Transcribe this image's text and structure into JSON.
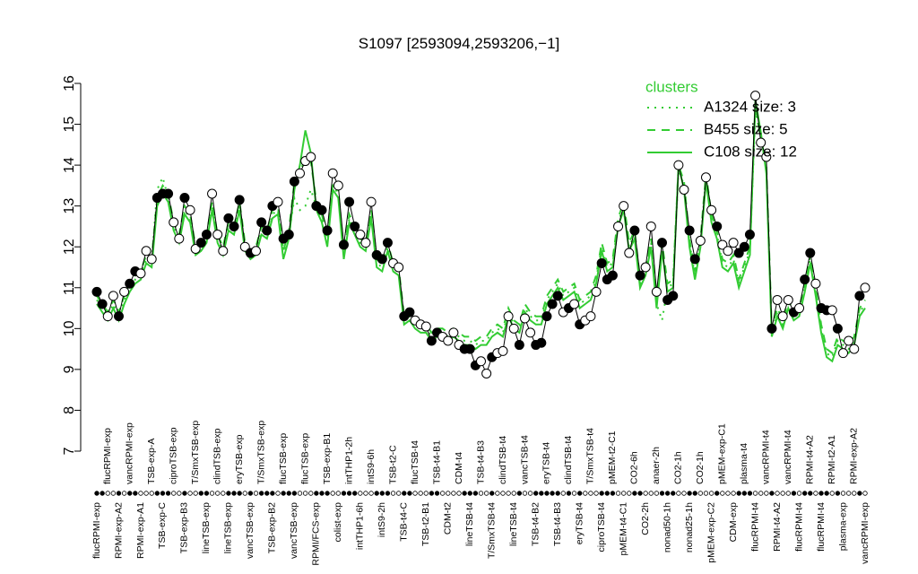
{
  "chart_data": {
    "type": "line",
    "title": "S1097 [2593094,2593206,−1]",
    "ylim": [
      7,
      16
    ],
    "yticks": [
      7,
      8,
      9,
      10,
      11,
      12,
      13,
      14,
      15,
      16
    ],
    "legend_title": "clusters",
    "legend_position": "top-right",
    "categories": [
      "flucRPMI-exp",
      null,
      "flucRPMI-exp",
      null,
      "RPMI-exp-A2",
      null,
      "vancRPMI-exp",
      null,
      "RPMI-exp-A1",
      null,
      "TSB-exp-A",
      null,
      "TSB-exp-C",
      null,
      "ciproTSB-exp",
      null,
      "TSB-exp-B3",
      null,
      "T/SmxTSB-exp",
      null,
      "lineTSB-exp",
      null,
      "clindTSB-exp",
      null,
      "lineTSB-exp",
      null,
      "eryTSB-exp",
      null,
      "vancTSB-exp",
      null,
      "T/SmxTSB-exp",
      null,
      "TSB-exp-B2",
      null,
      "flucTSB-exp",
      null,
      "vancTSB-exp",
      null,
      "flucTSB-exp",
      null,
      "RPMI/FCS-exp",
      null,
      "TSB-exp-B1",
      null,
      "colist-exp",
      null,
      "intTHP1-2h",
      null,
      "intTHP1-6h",
      null,
      "intS9-6h",
      null,
      "intS9-2h",
      null,
      "TSB-t2-C",
      null,
      "TSB-t4-C",
      null,
      "flucTSB-t4",
      null,
      "TSB-t2-B1",
      null,
      "TSB-t4-B1",
      null,
      "CDM-t2",
      null,
      "CDM-t4",
      null,
      "lineTSB-t4",
      null,
      "TSB-t4-B3",
      null,
      "T/SmxTSB-t4",
      null,
      "clindTSB-t4",
      null,
      "lineTSB-t4",
      null,
      "vancTSB-t4",
      null,
      "TSB-t4-B2",
      null,
      "eryTSB-t4",
      null,
      "TSB-t4-B3",
      null,
      "clindTSB-t4",
      null,
      "eryTSB-t4",
      null,
      "T/SmxTSB-t4",
      null,
      "ciproTSB-t4",
      null,
      "pMEM-t2-C1",
      null,
      "pMEM-t4-C1",
      null,
      "CO2-6h",
      null,
      "CO2-2h",
      null,
      "anaer-2h",
      null,
      "nonad50-1h",
      null,
      "CO2-1h",
      null,
      "nonad25-1h",
      null,
      "CO2-1h",
      null,
      "pMEM-exp-C2",
      null,
      "pMEM-exp-C1",
      null,
      "CDM-exp",
      null,
      "plasma-t4",
      null,
      "flucRPMI-t4",
      null,
      "vancRPMI-t4",
      null,
      "RPMI-t4-A2",
      null,
      "vancRPMI-t4",
      null,
      "flucRPMI-t4",
      null,
      "RPMI-t4-A2",
      null,
      "flucRPMI-t4",
      null,
      "RPMI-t2-A1",
      null,
      "plasma-exp",
      null,
      "RPMI-exp-A2",
      null,
      "vancRPMI-exp"
    ],
    "values": [
      10.9,
      10.6,
      10.3,
      10.8,
      10.3,
      10.9,
      11.1,
      11.4,
      11.35,
      11.9,
      11.7,
      13.2,
      13.3,
      13.3,
      12.6,
      12.2,
      13.2,
      12.9,
      11.95,
      12.1,
      12.3,
      13.3,
      12.3,
      11.9,
      12.7,
      12.5,
      13.15,
      12.0,
      11.85,
      11.9,
      12.6,
      12.4,
      13.0,
      13.1,
      12.2,
      12.3,
      13.6,
      13.8,
      14.1,
      14.2,
      13.0,
      12.9,
      12.4,
      13.8,
      13.5,
      12.05,
      13.1,
      12.5,
      12.3,
      12.1,
      13.1,
      11.8,
      11.7,
      12.1,
      11.6,
      11.5,
      10.3,
      10.4,
      10.2,
      10.1,
      10.05,
      9.7,
      9.9,
      9.8,
      9.7,
      9.9,
      9.6,
      9.5,
      9.5,
      9.1,
      9.2,
      8.9,
      9.3,
      9.4,
      9.45,
      10.3,
      10.0,
      9.6,
      10.25,
      9.9,
      9.6,
      9.65,
      10.3,
      10.6,
      10.8,
      10.4,
      10.5,
      10.6,
      10.1,
      10.2,
      10.3,
      10.9,
      11.6,
      11.2,
      11.3,
      12.5,
      13.0,
      11.85,
      12.4,
      11.3,
      11.5,
      12.5,
      10.9,
      12.1,
      10.7,
      10.8,
      14.0,
      13.4,
      12.4,
      11.7,
      12.15,
      13.7,
      12.9,
      12.5,
      12.05,
      11.9,
      12.1,
      11.85,
      12.0,
      12.3,
      15.7,
      14.55,
      14.2,
      10.0,
      10.7,
      10.3,
      10.7,
      10.4,
      10.5,
      11.2,
      11.85,
      11.1,
      10.5,
      10.45,
      10.45,
      10.0,
      9.4,
      9.7,
      9.5,
      10.8,
      11.0
    ],
    "point_filled": [
      true,
      true,
      false,
      false,
      true,
      false,
      true,
      true,
      false,
      false,
      false,
      true,
      true,
      true,
      false,
      false,
      true,
      false,
      false,
      true,
      true,
      false,
      false,
      false,
      true,
      true,
      true,
      false,
      true,
      false,
      true,
      true,
      true,
      false,
      true,
      true,
      true,
      false,
      false,
      false,
      true,
      true,
      true,
      false,
      false,
      true,
      true,
      true,
      false,
      false,
      false,
      true,
      true,
      true,
      false,
      false,
      true,
      true,
      false,
      false,
      false,
      true,
      true,
      false,
      false,
      false,
      false,
      true,
      true,
      true,
      false,
      false,
      true,
      false,
      false,
      false,
      false,
      true,
      false,
      false,
      true,
      true,
      true,
      true,
      true,
      false,
      true,
      false,
      true,
      false,
      false,
      false,
      true,
      true,
      true,
      false,
      false,
      false,
      true,
      true,
      false,
      false,
      false,
      true,
      true,
      true,
      false,
      false,
      true,
      true,
      false,
      false,
      false,
      true,
      false,
      false,
      false,
      true,
      true,
      true,
      false,
      false,
      false,
      true,
      false,
      false,
      false,
      true,
      false,
      true,
      true,
      false,
      true,
      true,
      false,
      true,
      false,
      false,
      false,
      true,
      false
    ],
    "series": [
      {
        "name": "A1324 size: 3",
        "color": "#33cc33",
        "style": "dotted",
        "values": [
          10.7,
          10.5,
          10.3,
          10.6,
          10.3,
          10.7,
          11.0,
          11.2,
          11.3,
          11.7,
          11.6,
          13.4,
          13.7,
          13.2,
          12.5,
          12.2,
          12.9,
          12.7,
          11.9,
          12.0,
          12.2,
          13.0,
          12.2,
          11.9,
          12.5,
          12.4,
          13.0,
          12.0,
          11.8,
          11.9,
          12.4,
          12.3,
          12.8,
          12.9,
          11.8,
          12.3,
          13.2,
          12.9,
          13.0,
          13.4,
          13.0,
          12.7,
          12.1,
          13.5,
          13.3,
          11.8,
          12.7,
          12.4,
          12.1,
          12.0,
          12.8,
          11.6,
          11.5,
          12.0,
          11.5,
          11.4,
          10.2,
          10.3,
          10.1,
          10.0,
          10.0,
          9.8,
          9.9,
          9.9,
          9.8,
          9.9,
          9.8,
          9.7,
          9.7,
          9.6,
          9.7,
          9.7,
          9.9,
          10.0,
          9.9,
          10.4,
          10.1,
          10.0,
          10.5,
          10.3,
          10.2,
          10.2,
          10.7,
          10.9,
          11.1,
          10.8,
          10.9,
          11.0,
          10.6,
          10.7,
          10.8,
          11.2,
          12.0,
          11.5,
          11.6,
          12.6,
          13.0,
          12.0,
          12.3,
          11.1,
          11.4,
          12.1,
          10.6,
          10.2,
          11.0,
          11.1,
          13.9,
          13.5,
          12.1,
          11.3,
          12.1,
          13.7,
          12.7,
          12.3,
          11.6,
          11.5,
          11.7,
          11.1,
          11.5,
          11.9,
          15.3,
          14.7,
          13.9,
          9.9,
          10.4,
          10.1,
          10.6,
          10.3,
          10.4,
          11.0,
          11.7,
          10.9,
          10.0,
          9.4,
          9.3,
          9.7,
          9.6,
          9.5,
          9.7,
          10.4,
          10.6
        ]
      },
      {
        "name": "B455 size: 5",
        "color": "#33cc33",
        "style": "dashed",
        "values": [
          10.8,
          10.6,
          10.4,
          10.7,
          10.4,
          10.8,
          11.1,
          11.3,
          11.4,
          11.8,
          11.7,
          13.2,
          13.5,
          13.3,
          12.6,
          12.3,
          13.0,
          12.8,
          12.0,
          12.1,
          12.3,
          13.1,
          12.3,
          12.0,
          12.6,
          12.5,
          13.1,
          12.1,
          11.9,
          12.0,
          12.5,
          12.4,
          12.9,
          13.0,
          11.9,
          12.4,
          13.6,
          13.8,
          14.2,
          14.1,
          13.1,
          12.8,
          12.2,
          13.6,
          13.4,
          11.9,
          12.8,
          12.5,
          12.2,
          12.1,
          12.9,
          11.7,
          11.6,
          12.1,
          11.6,
          11.5,
          10.3,
          10.4,
          10.2,
          10.1,
          10.1,
          9.9,
          10.0,
          10.0,
          9.9,
          10.0,
          9.9,
          9.8,
          9.8,
          9.7,
          9.8,
          9.8,
          10.0,
          10.1,
          10.0,
          10.5,
          10.2,
          10.1,
          10.6,
          10.4,
          10.3,
          10.3,
          10.8,
          11.0,
          11.2,
          10.9,
          11.0,
          11.1,
          10.7,
          10.8,
          10.9,
          11.3,
          12.1,
          11.6,
          11.7,
          12.7,
          13.1,
          12.1,
          12.4,
          11.2,
          11.5,
          12.2,
          10.7,
          12.1,
          11.1,
          11.2,
          14.0,
          13.6,
          12.2,
          11.4,
          12.2,
          13.8,
          12.8,
          12.4,
          11.7,
          11.6,
          11.8,
          11.2,
          11.6,
          12.0,
          15.5,
          14.6,
          14.0,
          10.0,
          10.5,
          10.2,
          10.7,
          10.4,
          10.5,
          11.1,
          11.8,
          11.0,
          10.1,
          9.5,
          9.4,
          9.8,
          9.7,
          9.6,
          9.8,
          10.5,
          10.7
        ]
      },
      {
        "name": "C108 size: 12",
        "color": "#33cc33",
        "style": "solid",
        "values": [
          10.6,
          10.4,
          10.2,
          10.5,
          10.2,
          10.6,
          10.9,
          11.1,
          11.2,
          11.6,
          11.5,
          13.0,
          13.3,
          13.1,
          12.4,
          12.1,
          12.8,
          12.6,
          11.8,
          11.9,
          12.1,
          12.9,
          12.1,
          11.8,
          12.4,
          12.3,
          12.9,
          11.9,
          11.7,
          11.8,
          12.3,
          12.2,
          12.7,
          12.8,
          11.7,
          12.2,
          13.4,
          14.0,
          14.85,
          14.3,
          12.9,
          12.6,
          12.0,
          13.4,
          13.2,
          11.7,
          12.6,
          12.3,
          12.0,
          11.9,
          12.7,
          11.5,
          11.4,
          11.9,
          11.4,
          11.3,
          10.1,
          10.2,
          10.0,
          9.9,
          9.9,
          9.7,
          9.8,
          9.8,
          9.7,
          9.8,
          9.7,
          9.6,
          9.6,
          9.5,
          9.6,
          9.6,
          9.8,
          9.9,
          9.8,
          10.3,
          10.0,
          9.9,
          10.4,
          10.2,
          10.1,
          10.1,
          10.6,
          10.8,
          11.0,
          10.7,
          10.8,
          10.9,
          10.5,
          10.6,
          10.7,
          11.1,
          11.9,
          11.4,
          11.5,
          12.5,
          12.9,
          11.9,
          12.2,
          11.0,
          11.3,
          12.0,
          10.5,
          11.9,
          10.9,
          11.0,
          14.0,
          13.4,
          12.0,
          11.2,
          12.0,
          13.6,
          12.6,
          12.2,
          11.5,
          11.4,
          11.6,
          11.0,
          11.4,
          11.8,
          15.6,
          14.8,
          13.8,
          9.8,
          10.3,
          10.0,
          10.5,
          10.2,
          10.3,
          10.9,
          11.6,
          10.8,
          9.9,
          9.3,
          9.2,
          9.6,
          9.5,
          9.4,
          9.6,
          10.3,
          10.5
        ]
      }
    ]
  }
}
